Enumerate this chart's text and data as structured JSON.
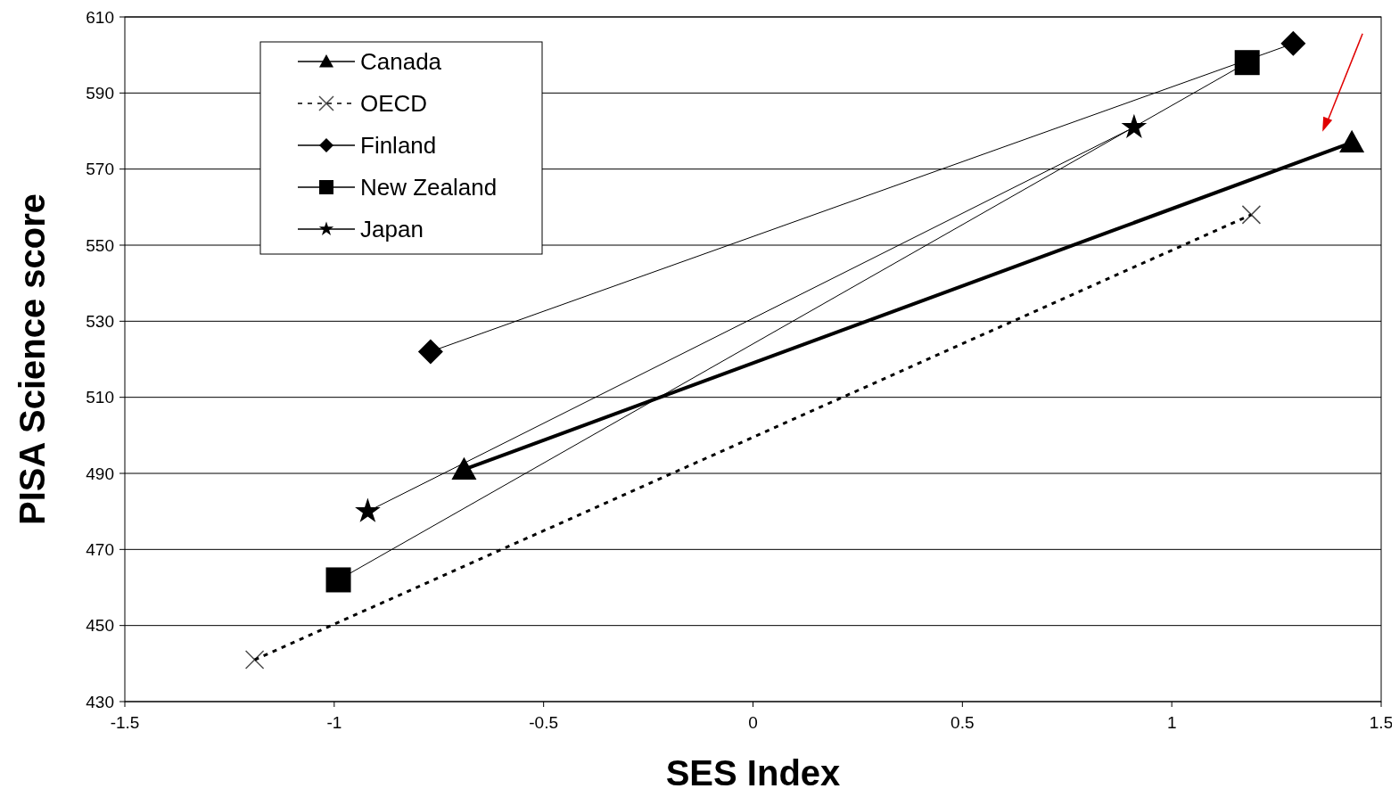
{
  "chart_data": {
    "type": "line",
    "xlabel": "SES Index",
    "ylabel": "PISA Science score",
    "xlim": [
      -1.5,
      1.5
    ],
    "xticks": [
      -1.5,
      -1,
      -0.5,
      0,
      0.5,
      1,
      1.5
    ],
    "ylim": [
      430,
      610
    ],
    "yticks": [
      430,
      450,
      470,
      490,
      510,
      530,
      550,
      570,
      590,
      610
    ],
    "grid": "y",
    "legend": "top left",
    "series": [
      {
        "name": "Canada",
        "color": "#000000",
        "marker": "triangle",
        "line_style": "solid",
        "x": [
          -0.69,
          1.43
        ],
        "values": [
          491,
          577
        ]
      },
      {
        "name": "OECD",
        "color": "#000000",
        "marker": "cross",
        "line_style": "dotted",
        "x": [
          -1.19,
          1.19
        ],
        "values": [
          441,
          558
        ]
      },
      {
        "name": "Finland",
        "color": "#000000",
        "marker": "diamond",
        "line_style": "solid",
        "x": [
          -0.77,
          1.29
        ],
        "values": [
          522,
          603
        ]
      },
      {
        "name": "New Zealand",
        "color": "#000000",
        "marker": "square",
        "line_style": "solid",
        "x": [
          -0.99,
          1.18
        ],
        "values": [
          462,
          598
        ]
      },
      {
        "name": "Japan",
        "color": "#000000",
        "marker": "star",
        "line_style": "solid",
        "x": [
          -0.92,
          0.91
        ],
        "values": [
          480,
          581
        ]
      }
    ]
  }
}
